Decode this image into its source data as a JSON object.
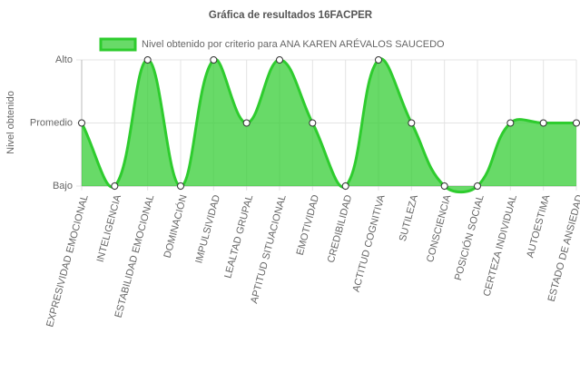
{
  "chart_data": {
    "type": "line",
    "title": "Gráfica de resultados 16FACPER",
    "y_label": "Nivel obtenido",
    "categories": [
      "EXPRESIVIDAD EMOCIONAL",
      "INTELIGENCIA",
      "ESTABILIDAD EMOCIONAL",
      "DOMINACIÓN",
      "IMPULSIVIDAD",
      "LEALTAD GRUPAL",
      "APTITUD SITUACIONAL",
      "EMOTIVIDAD",
      "CREDIBILIDAD",
      "ACTITUD COGNITIVA",
      "SUTILEZA",
      "CONSCIENCIA",
      "POSICIÓN SOCIAL",
      "CERTEZA INDIVIDUAL",
      "AUTOESTIMA",
      "ESTADO DE ANSIEDAD"
    ],
    "series": [
      {
        "name": "Nivel obtenido por criterio para ANA KAREN ARÉVALOS SAUCEDO",
        "color": "#2ecc2e",
        "values": [
          2,
          1,
          3,
          1,
          3,
          2,
          3,
          2,
          1,
          3,
          2,
          1,
          1,
          2,
          2,
          2
        ]
      }
    ],
    "ylim": [
      1,
      3
    ],
    "yticks": [
      {
        "value": 1,
        "label": "Bajo"
      },
      {
        "value": 2,
        "label": "Promedio"
      },
      {
        "value": 3,
        "label": "Alto"
      }
    ],
    "grid": true,
    "fill": true,
    "legend": "top"
  }
}
